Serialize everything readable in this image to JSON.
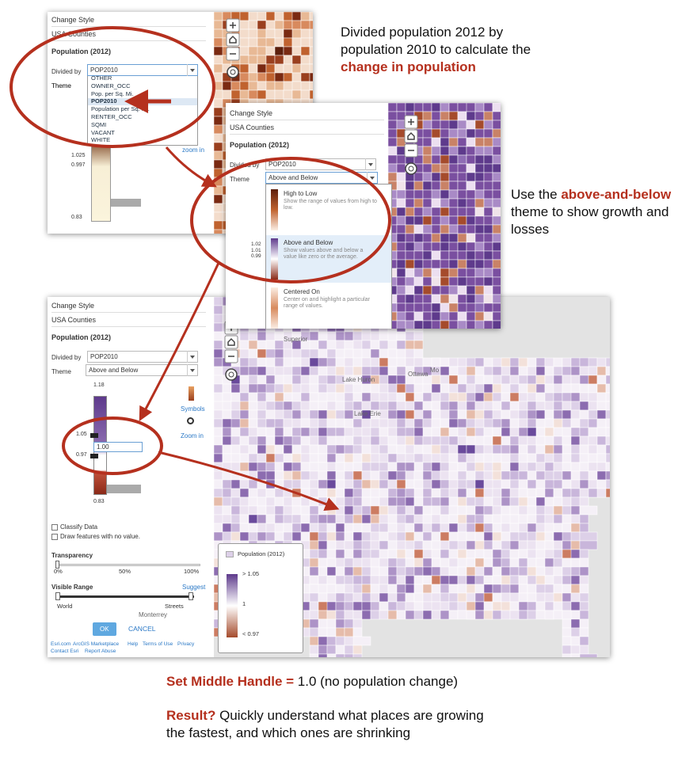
{
  "annotations": [
    {
      "text": "Divided population 2012 by population 2010 to calculate the",
      "highlight": "change in population"
    },
    {
      "text": "Use the",
      "highlight": "above-and-below",
      "text_after": "theme to show growth and losses"
    }
  ],
  "panel_1": {
    "title": "Change Style",
    "layer": "USA Counties",
    "field": "Population (2012)",
    "divided_by_label": "Divided by",
    "divided_by": "POP2010",
    "theme_label": "Theme",
    "field_options": [
      "OTHER",
      "OWNER_OCC",
      "Pop. per Sq. Mi.",
      "POP2010",
      "Population per Sq. Mi.",
      "RENTER_OCC",
      "SQMI",
      "VACANT",
      "WHITE"
    ],
    "handle_labels": [
      "1.025",
      "0.997",
      "0.83"
    ],
    "links": [
      "ols",
      "zoom in"
    ]
  },
  "panel_2": {
    "title": "Change Style",
    "layer": "USA Counties",
    "field": "Population (2012)",
    "divided_by_label": "Divided by",
    "divided_by": "POP2010",
    "theme_label": "Theme",
    "theme": "Above and Below",
    "theme_options": [
      {
        "name": "High to Low",
        "description": "Show the range of values from high to low."
      },
      {
        "name": "Above and Below",
        "description": "Show values above and below a value like zero or the average."
      },
      {
        "name": "Centered On",
        "description": "Center on and highlight a particular range of values."
      }
    ],
    "handle_labels": [
      "1.02",
      "1.01",
      "0.99"
    ],
    "links": [
      "ols",
      "in"
    ]
  },
  "panel_3": {
    "title": "Change Style",
    "layer": "USA Counties",
    "field": "Population (2012)",
    "divided_by_label": "Divided by",
    "divided_by": "POP2010",
    "theme_label": "Theme",
    "theme": "Above and Below",
    "handle_labels": {
      "max": "1.18",
      "upper": "1.05",
      "middle": "1.00",
      "lower": "0.97",
      "min": "0.83"
    },
    "symbols_link": "Symbols",
    "zoom_link": "Zoom in",
    "checkboxes": [
      "Classify Data",
      "Draw features with no value."
    ],
    "transparency_label": "Transparency",
    "transparency_ticks": [
      "0%",
      "50%",
      "100%"
    ],
    "visible_range_label": "Visible Range",
    "suggest": "Suggest",
    "range_ends": [
      "World",
      "Streets"
    ],
    "buttons": [
      "OK",
      "CANCEL"
    ],
    "footer_links": [
      "Esri.com",
      "ArcGIS Marketplace",
      "Help",
      "Terms of Use",
      "Privacy",
      "Contact Esri",
      "Report Abuse"
    ]
  },
  "map_labels": [
    "Superior",
    "Ottawa",
    "Lake Huron",
    "Lake Erie",
    "Mo",
    "Monterrey",
    "Gulf of Mexico"
  ],
  "legend": {
    "title": "Population (2012)",
    "labels": [
      "> 1.05",
      "1",
      "< 0.97"
    ]
  },
  "caption": {
    "set_handle": {
      "highlight": "Set Middle Handle =",
      "text": "1.0 (no population change)"
    },
    "result": {
      "highlight": "Result?",
      "text": "Quickly understand what places are growing the fastest, and which ones are shrinking"
    }
  }
}
